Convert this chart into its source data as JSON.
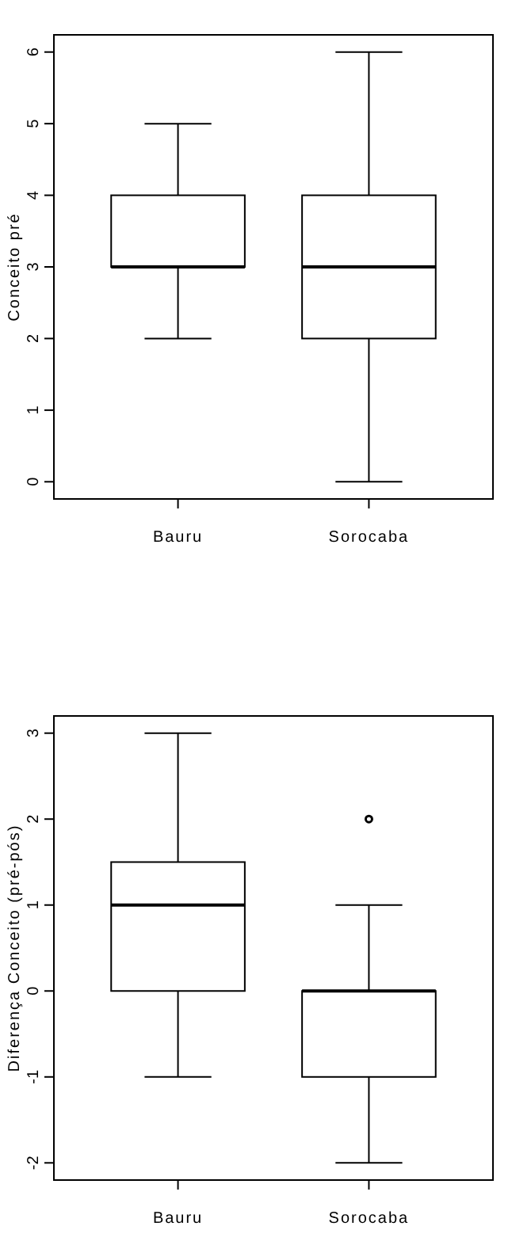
{
  "chart_data": [
    {
      "type": "box",
      "ylabel": "Conceito pré",
      "categories": [
        "Bauru",
        "Sorocaba"
      ],
      "ylim": [
        -0.24,
        6.24
      ],
      "yticks": [
        0,
        1,
        2,
        3,
        4,
        5,
        6
      ],
      "grid": false,
      "boxes": [
        {
          "low": 2,
          "q1": 3,
          "median": 3,
          "q3": 4,
          "high": 5
        },
        {
          "low": 0,
          "q1": 2,
          "median": 3,
          "q3": 4,
          "high": 6
        }
      ]
    },
    {
      "type": "box",
      "ylabel": "Diferença Conceito (pré-pós)",
      "categories": [
        "Bauru",
        "Sorocaba"
      ],
      "ylim": [
        -2.2,
        3.2
      ],
      "yticks": [
        -2,
        -1,
        0,
        1,
        2,
        3
      ],
      "grid": false,
      "boxes": [
        {
          "low": -1,
          "q1": 0,
          "median": 1,
          "q3": 1.5,
          "high": 3
        },
        {
          "low": -2,
          "q1": -1,
          "median": 0,
          "q3": 0,
          "high": 1,
          "outliers": [
            2
          ]
        }
      ]
    }
  ]
}
